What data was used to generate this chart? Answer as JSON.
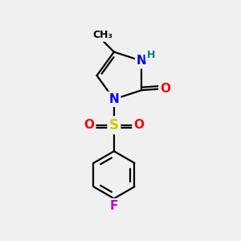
{
  "background_color": "#f0f0f0",
  "bond_color": "#000000",
  "bond_width": 1.6,
  "atom_colors": {
    "N": "#0000ff",
    "O": "#ff0000",
    "S": "#cccc00",
    "F": "#cc00cc",
    "H": "#008080",
    "C": "#000000"
  },
  "font_size": 11,
  "dbl_sep": 0.12
}
